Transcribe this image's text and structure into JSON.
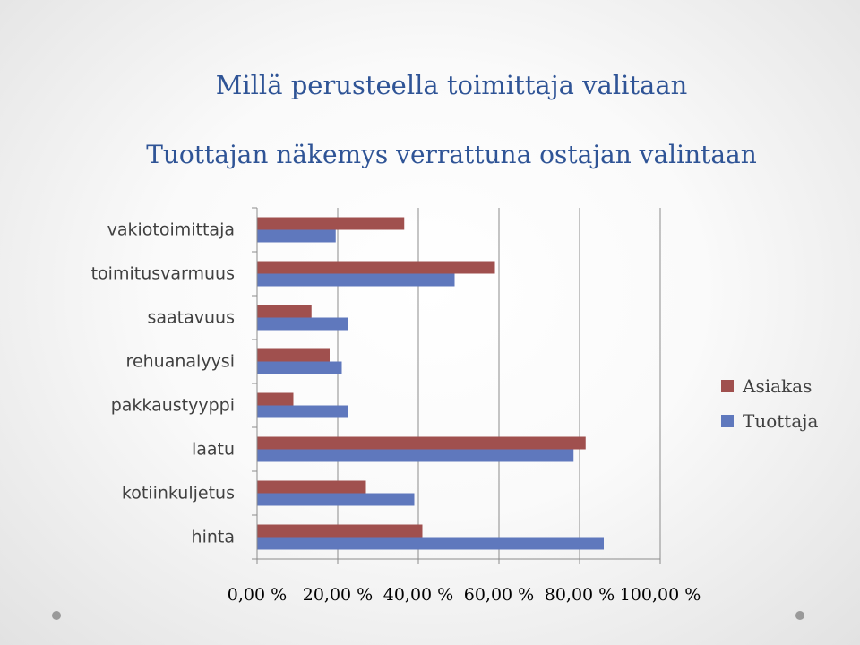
{
  "slide": {
    "title": "Millä perusteella toimittaja valitaan"
  },
  "chart_data": {
    "type": "bar",
    "orientation": "horizontal",
    "title": "Tuottajan näkemys verrattuna ostajan valintaan",
    "categories": [
      "vakiotoimittaja",
      "toimitusvarmuus",
      "saatavuus",
      "rehuanalyysi",
      "pakkaustyyppi",
      "laatu",
      "kotiinkuljetus",
      "hinta"
    ],
    "series": [
      {
        "name": "Asiakas",
        "color": "#a0504e",
        "values": [
          36.5,
          59.0,
          13.5,
          18.0,
          9.0,
          81.5,
          27.0,
          41.0
        ]
      },
      {
        "name": "Tuottaja",
        "color": "#5f78bd",
        "values": [
          19.5,
          49.0,
          22.5,
          21.0,
          22.5,
          78.5,
          39.0,
          86.0
        ]
      }
    ],
    "xlim": [
      0,
      100
    ],
    "xticks": [
      0,
      20,
      40,
      60,
      80,
      100
    ],
    "xtick_labels": [
      "0,00 %",
      "20,00 %",
      "40,00 %",
      "60,00 %",
      "80,00 %",
      "100,00 %"
    ],
    "grid": true,
    "legend_position": "right"
  }
}
